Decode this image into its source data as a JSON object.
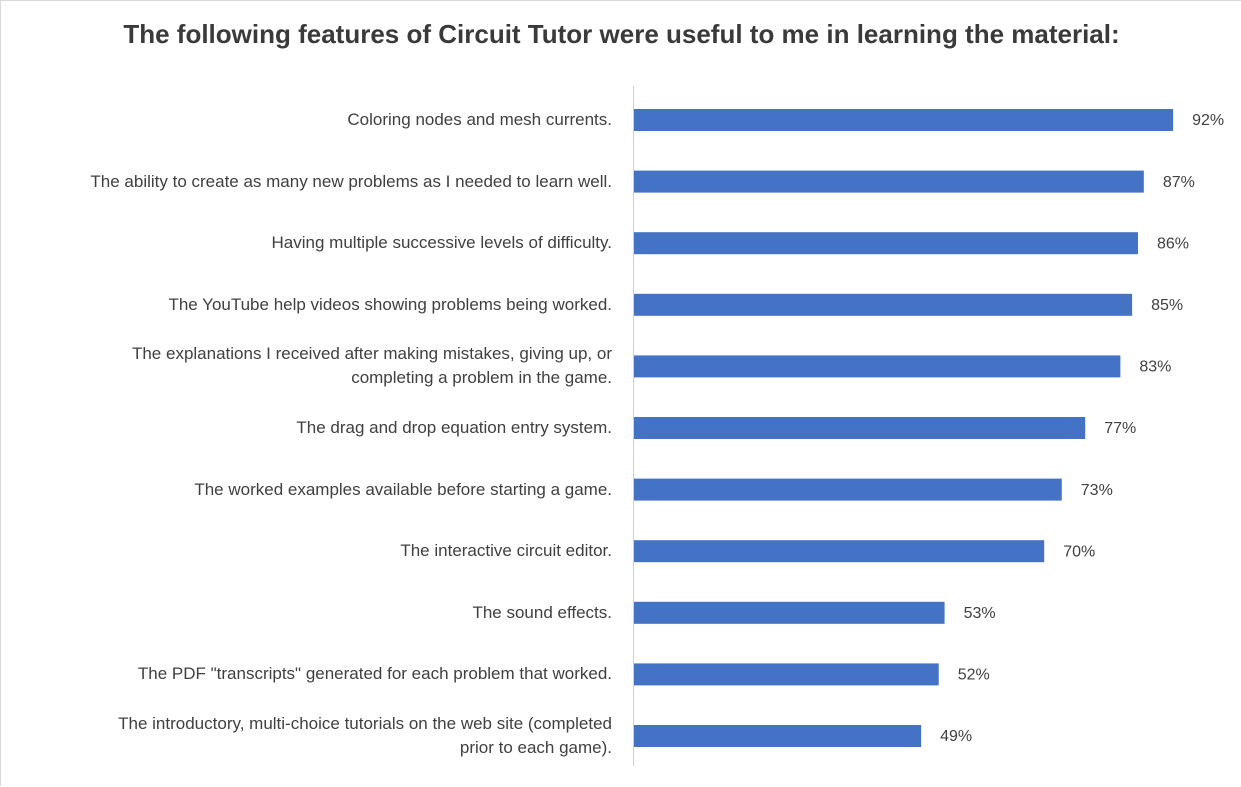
{
  "chart_data": {
    "type": "bar",
    "orientation": "horizontal",
    "title": "The following features of Circuit Tutor were useful to me in learning the material:",
    "categories": [
      "Coloring nodes and mesh currents.",
      "The ability to create as many new problems as I needed to learn well.",
      "Having multiple successive levels of difficulty.",
      "The YouTube help videos showing problems being worked.",
      "The explanations I received after making mistakes, giving up, or\ncompleting a problem in the game.",
      "The drag and drop equation entry system.",
      "The worked examples available before starting a game.",
      "The interactive circuit editor.",
      "The sound effects.",
      "The PDF \"transcripts\" generated for each problem that worked.",
      "The introductory, multi-choice tutorials on the web site (completed\nprior to each game)."
    ],
    "values": [
      92,
      87,
      86,
      85,
      83,
      77,
      73,
      70,
      53,
      52,
      49
    ],
    "value_labels": [
      "92%",
      "87%",
      "86%",
      "85%",
      "83%",
      "77%",
      "73%",
      "70%",
      "53%",
      "52%",
      "49%"
    ],
    "color": "#4472c4"
  }
}
